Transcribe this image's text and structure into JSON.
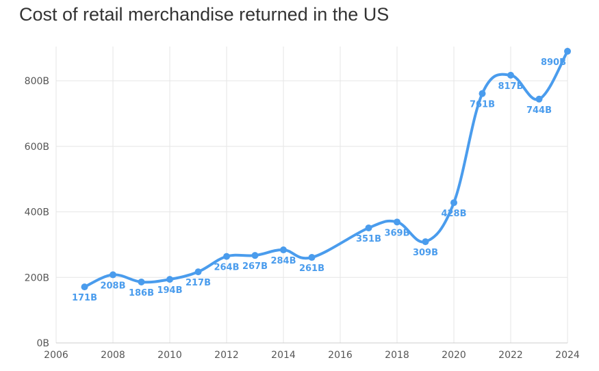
{
  "colors": {
    "series": "#4a9ced",
    "grid": "#e6e6e6",
    "axis_text": "#555555",
    "title": "#333333"
  },
  "chart_data": {
    "type": "line",
    "title": "Cost of retail merchandise returned in the US",
    "xlabel": "",
    "ylabel": "",
    "xlim": [
      2006,
      2024
    ],
    "ylim": [
      0,
      900
    ],
    "x_ticks": [
      2006,
      2008,
      2010,
      2012,
      2014,
      2016,
      2018,
      2020,
      2022,
      2024
    ],
    "y_ticks": [
      0,
      200,
      400,
      600,
      800
    ],
    "y_tick_labels": [
      "0B",
      "200B",
      "400B",
      "600B",
      "800B"
    ],
    "grid": true,
    "legend": "none",
    "series": [
      {
        "x": [
          2007,
          2008,
          2009,
          2010,
          2011,
          2012,
          2013,
          2014,
          2015,
          2017,
          2018,
          2019,
          2020,
          2021,
          2022,
          2023,
          2024
        ],
        "values": [
          171,
          208,
          186,
          194,
          217,
          264,
          267,
          284,
          261,
          351,
          369,
          309,
          428,
          761,
          817,
          744,
          890
        ],
        "labels": [
          "171B",
          "208B",
          "186B",
          "194B",
          "217B",
          "264B",
          "267B",
          "284B",
          "261B",
          "351B",
          "369B",
          "309B",
          "428B",
          "761B",
          "817B",
          "744B",
          "890B"
        ]
      }
    ]
  }
}
